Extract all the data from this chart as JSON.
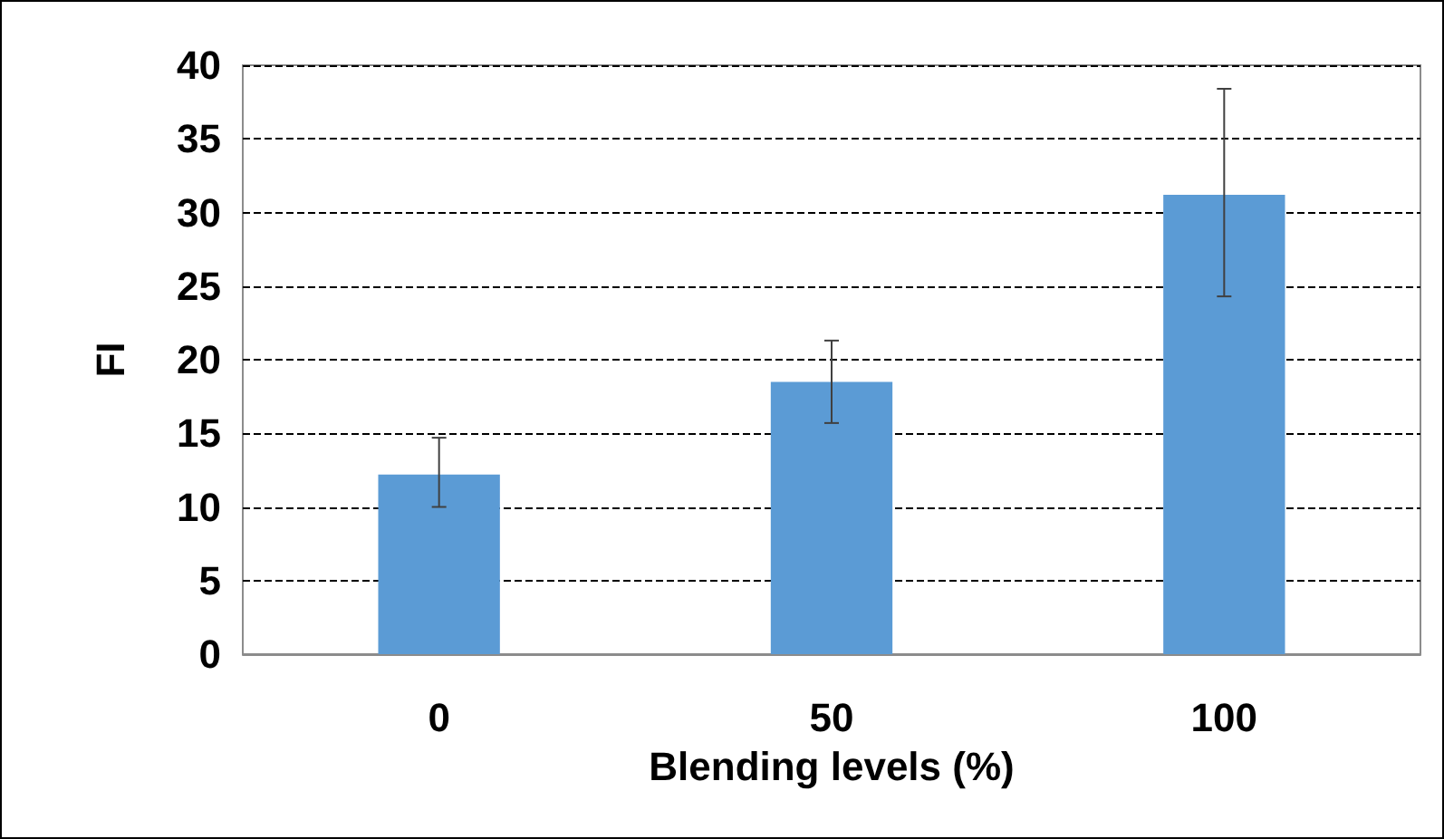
{
  "chart_data": {
    "type": "bar",
    "xlabel": "Blending levels (%)",
    "ylabel": "FI",
    "categories": [
      "0",
      "50",
      "100"
    ],
    "series": [
      {
        "color": "#5b9bd5",
        "values": [
          12.2,
          18.5,
          31.2
        ],
        "errors": [
          [
            10.0,
            14.7
          ],
          [
            15.7,
            21.3
          ],
          [
            24.3,
            38.4
          ]
        ]
      }
    ],
    "ylim": [
      0,
      40
    ],
    "yticks": [
      0,
      5,
      10,
      15,
      20,
      25,
      30,
      35,
      40
    ],
    "grid": "y"
  }
}
